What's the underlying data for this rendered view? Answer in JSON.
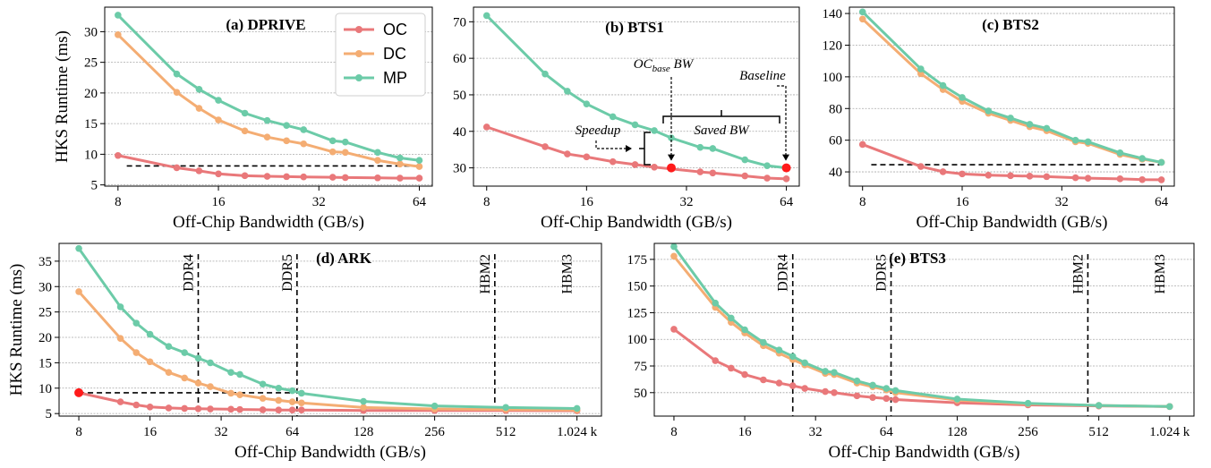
{
  "colors": {
    "OC": "#e9787a",
    "DC": "#f4ad73",
    "MP": "#6ccba8",
    "marker_red": "#ff1a1a"
  },
  "legend": [
    {
      "key": "OC",
      "label": "OC"
    },
    {
      "key": "DC",
      "label": "DC"
    },
    {
      "key": "MP",
      "label": "MP"
    }
  ],
  "chart_data": [
    {
      "id": "a",
      "type": "line",
      "title": "(a) DPRIVE",
      "xlabel": "Off-Chip Bandwidth (GB/s)",
      "ylabel": "HKS Runtime (ms)",
      "xscale": "log2",
      "xlim": [
        7.3,
        70
      ],
      "ylim": [
        4.8,
        34
      ],
      "xticks": [
        8,
        16,
        32,
        64
      ],
      "xticklabels": [
        "8",
        "16",
        "32",
        "64"
      ],
      "yticks": [
        5,
        10,
        15,
        20,
        25,
        30
      ],
      "yticklabels": [
        "5",
        "10",
        "15",
        "20",
        "25",
        "30"
      ],
      "grid": "y",
      "legend": "top-right",
      "series": [
        {
          "name": "OC",
          "x": [
            8,
            12,
            14,
            16,
            19.2,
            22.4,
            25.6,
            28.8,
            35.2,
            38.4,
            48,
            56,
            64
          ],
          "y": [
            9.8,
            7.8,
            7.3,
            6.8,
            6.5,
            6.4,
            6.35,
            6.3,
            6.25,
            6.2,
            6.15,
            6.1,
            6.1
          ]
        },
        {
          "name": "DC",
          "x": [
            8,
            12,
            14,
            16,
            19.2,
            22.4,
            25.6,
            28.8,
            35.2,
            38.4,
            48,
            56,
            64
          ],
          "y": [
            29.5,
            20.1,
            17.5,
            15.6,
            13.8,
            12.8,
            12.2,
            11.7,
            10.4,
            10.3,
            9.0,
            8.4,
            8.0
          ]
        },
        {
          "name": "MP",
          "x": [
            8,
            12,
            14,
            16,
            19.2,
            22.4,
            25.6,
            28.8,
            35.2,
            38.4,
            48,
            56,
            64
          ],
          "y": [
            32.7,
            23.1,
            20.6,
            18.8,
            16.7,
            15.5,
            14.7,
            14.0,
            12.2,
            12.0,
            10.3,
            9.4,
            9.0
          ]
        }
      ],
      "hlines": [
        {
          "y": 8.1,
          "x0": 8.5,
          "x1": 64
        }
      ]
    },
    {
      "id": "b",
      "type": "line",
      "title": "(b) BTS1",
      "xlabel": "Off-Chip Bandwidth (GB/s)",
      "ylabel": "",
      "xscale": "log2",
      "xlim": [
        7.3,
        70
      ],
      "ylim": [
        25,
        74
      ],
      "xticks": [
        8,
        16,
        32,
        64
      ],
      "xticklabels": [
        "8",
        "16",
        "32",
        "64"
      ],
      "yticks": [
        30,
        40,
        50,
        60,
        70
      ],
      "yticklabels": [
        "30",
        "40",
        "50",
        "60",
        "70"
      ],
      "grid": "y",
      "series": [
        {
          "name": "OC",
          "x": [
            8,
            12,
            14,
            16,
            19.2,
            22.4,
            25.6,
            28.8,
            35.2,
            38.4,
            48,
            56,
            64
          ],
          "y": [
            41.2,
            35.8,
            33.8,
            33.0,
            31.7,
            30.9,
            30.2,
            29.7,
            28.9,
            28.6,
            27.8,
            27.2,
            27.0
          ]
        },
        {
          "name": "MP",
          "x": [
            8,
            12,
            14,
            16,
            19.2,
            22.4,
            25.6,
            28.8,
            35.2,
            38.4,
            48,
            56,
            64
          ],
          "y": [
            71.7,
            55.7,
            51.0,
            47.5,
            44.0,
            41.8,
            40.2,
            38.2,
            35.6,
            35.3,
            32.2,
            30.6,
            30.0
          ]
        }
      ],
      "highlight_points": [
        {
          "x": 28.8,
          "y": 30.0
        },
        {
          "x": 64,
          "y": 30.0
        }
      ],
      "annotations": [
        {
          "type": "OCbase",
          "text": "OC",
          "sub": "base",
          "rest": " BW"
        },
        {
          "type": "baseline",
          "text": "Baseline"
        },
        {
          "type": "speedup",
          "text": "Speedup"
        },
        {
          "type": "savedbw",
          "text": "Saved BW"
        }
      ]
    },
    {
      "id": "c",
      "type": "line",
      "title": "(c) BTS2",
      "xlabel": "Off-Chip Bandwidth (GB/s)",
      "ylabel": "",
      "xscale": "log2",
      "xlim": [
        7.3,
        70
      ],
      "ylim": [
        31,
        144
      ],
      "xticks": [
        8,
        16,
        32,
        64
      ],
      "xticklabels": [
        "8",
        "16",
        "32",
        "64"
      ],
      "yticks": [
        40,
        60,
        80,
        100,
        120,
        140
      ],
      "yticklabels": [
        "40",
        "60",
        "80",
        "100",
        "120",
        "140"
      ],
      "grid": "y",
      "series": [
        {
          "name": "OC",
          "x": [
            8,
            12,
            14,
            16,
            19.2,
            22.4,
            25.6,
            28.8,
            35.2,
            38.4,
            48,
            56,
            64
          ],
          "y": [
            57.3,
            43.4,
            40.1,
            38.7,
            37.9,
            37.6,
            37.3,
            37.0,
            36.3,
            36.0,
            35.6,
            35.1,
            35.0
          ]
        },
        {
          "name": "DC",
          "x": [
            8,
            12,
            14,
            16,
            19.2,
            22.4,
            25.6,
            28.8,
            35.2,
            38.4,
            48,
            56,
            64
          ],
          "y": [
            136.5,
            102.0,
            92.0,
            84.5,
            77.0,
            72.5,
            68.5,
            66.0,
            59.0,
            58.0,
            51.0,
            48.0,
            46.0
          ]
        },
        {
          "name": "MP",
          "x": [
            8,
            12,
            14,
            16,
            19.2,
            22.4,
            25.6,
            28.8,
            35.2,
            38.4,
            48,
            56,
            64
          ],
          "y": [
            141.0,
            105.0,
            94.5,
            87.0,
            78.5,
            74.0,
            70.0,
            67.5,
            60.0,
            59.0,
            52.0,
            48.5,
            46.0
          ]
        }
      ],
      "hlines": [
        {
          "y": 44.5,
          "x0": 8.5,
          "x1": 66
        }
      ]
    },
    {
      "id": "d",
      "type": "line",
      "title": "(d) ARK",
      "xlabel": "Off-Chip Bandwidth (GB/s)",
      "ylabel": "HKS Runtime (ms)",
      "xscale": "log2",
      "xlim": [
        6.6,
        1300
      ],
      "ylim": [
        4.5,
        38.5
      ],
      "xticks": [
        8,
        16,
        32,
        64,
        128,
        256,
        512,
        1024
      ],
      "xticklabels": [
        "8",
        "16",
        "32",
        "64",
        "128",
        "256",
        "512",
        "1.024 k"
      ],
      "yticks": [
        5,
        10,
        15,
        20,
        25,
        30,
        35
      ],
      "yticklabels": [
        "5",
        "10",
        "15",
        "20",
        "25",
        "30",
        "35"
      ],
      "grid": "y",
      "series": [
        {
          "name": "OC",
          "x": [
            8,
            12,
            14,
            16,
            19.2,
            22.4,
            25.6,
            28.8,
            35.2,
            38.4,
            48,
            56,
            64,
            70,
            128,
            256,
            512,
            1024
          ],
          "y": [
            9.1,
            7.3,
            6.7,
            6.3,
            6.1,
            6.0,
            5.95,
            5.9,
            5.85,
            5.8,
            5.75,
            5.7,
            5.7,
            5.7,
            5.6,
            5.6,
            5.6,
            5.55
          ]
        },
        {
          "name": "DC",
          "x": [
            8,
            12,
            14,
            16,
            19.2,
            22.4,
            25.6,
            28.8,
            35.2,
            38.4,
            48,
            56,
            64,
            70,
            128,
            256,
            512,
            1024
          ],
          "y": [
            29.0,
            19.8,
            17.0,
            15.2,
            13.1,
            12.0,
            11.0,
            10.3,
            9.0,
            8.7,
            8.0,
            7.6,
            7.3,
            7.1,
            6.2,
            5.9,
            5.8,
            5.7
          ]
        },
        {
          "name": "MP",
          "x": [
            8,
            12,
            14,
            16,
            19.2,
            22.4,
            25.6,
            28.8,
            35.2,
            38.4,
            48,
            56,
            64,
            70,
            128,
            256,
            512,
            1024
          ],
          "y": [
            37.5,
            26.0,
            22.8,
            20.6,
            18.2,
            17.0,
            15.9,
            15.0,
            13.1,
            12.7,
            10.8,
            10.0,
            9.5,
            9.0,
            7.4,
            6.5,
            6.2,
            6.0
          ]
        }
      ],
      "hlines": [
        {
          "y": 9.1,
          "x0": 8,
          "x1": 64
        }
      ],
      "vlines": [
        {
          "x": 25.6,
          "label": "DDR4"
        },
        {
          "x": 67,
          "label": "DDR5"
        },
        {
          "x": 460,
          "label": "HBM2"
        },
        {
          "x": 1024,
          "label": "HBM3",
          "noline": true
        }
      ],
      "highlight_points": [
        {
          "x": 8,
          "y": 9.1
        }
      ]
    },
    {
      "id": "e",
      "type": "line",
      "title": "(e) BTS3",
      "xlabel": "Off-Chip Bandwidth (GB/s)",
      "ylabel": "",
      "xscale": "log2",
      "xlim": [
        6.6,
        1300
      ],
      "ylim": [
        28,
        190
      ],
      "xticks": [
        8,
        16,
        32,
        64,
        128,
        256,
        512,
        1024
      ],
      "xticklabels": [
        "8",
        "16",
        "32",
        "64",
        "128",
        "256",
        "512",
        "1.024 k"
      ],
      "yticks": [
        50,
        75,
        100,
        125,
        150,
        175
      ],
      "yticklabels": [
        "50",
        "75",
        "100",
        "125",
        "150",
        "175"
      ],
      "grid": "y",
      "series": [
        {
          "name": "OC",
          "x": [
            8,
            12,
            14,
            16,
            19.2,
            22.4,
            25.6,
            28.8,
            35.2,
            38.4,
            48,
            56,
            64,
            70,
            128,
            256,
            512,
            1024
          ],
          "y": [
            109.5,
            80.0,
            73.0,
            67.0,
            62.0,
            59.0,
            56.5,
            54.0,
            51.0,
            50.0,
            47.0,
            45.5,
            44.5,
            43.5,
            40.5,
            38.5,
            37.5,
            37.0
          ]
        },
        {
          "name": "DC",
          "x": [
            8,
            12,
            14,
            16,
            19.2,
            22.4,
            25.6,
            28.8,
            35.2,
            38.4,
            48,
            56,
            64,
            70,
            128,
            256,
            512,
            1024
          ],
          "y": [
            178.0,
            130.0,
            116.0,
            106.0,
            94.0,
            87.0,
            81.0,
            76.0,
            68.0,
            67.0,
            59.0,
            55.5,
            52.5,
            50.0,
            43.0,
            39.5,
            38.0,
            37.0
          ]
        },
        {
          "name": "MP",
          "x": [
            8,
            12,
            14,
            16,
            19.2,
            22.4,
            25.6,
            28.8,
            35.2,
            38.4,
            48,
            56,
            64,
            70,
            128,
            256,
            512,
            1024
          ],
          "y": [
            187.0,
            134.0,
            120.0,
            109.0,
            97.0,
            90.0,
            84.0,
            78.0,
            70.0,
            69.0,
            61.0,
            57.0,
            54.0,
            52.0,
            44.0,
            40.0,
            38.0,
            37.0
          ]
        }
      ],
      "vlines": [
        {
          "x": 25.6,
          "label": "DDR4"
        },
        {
          "x": 67,
          "label": "DDR5"
        },
        {
          "x": 460,
          "label": "HBM2"
        },
        {
          "x": 1024,
          "label": "HBM3",
          "noline": true
        }
      ]
    }
  ]
}
